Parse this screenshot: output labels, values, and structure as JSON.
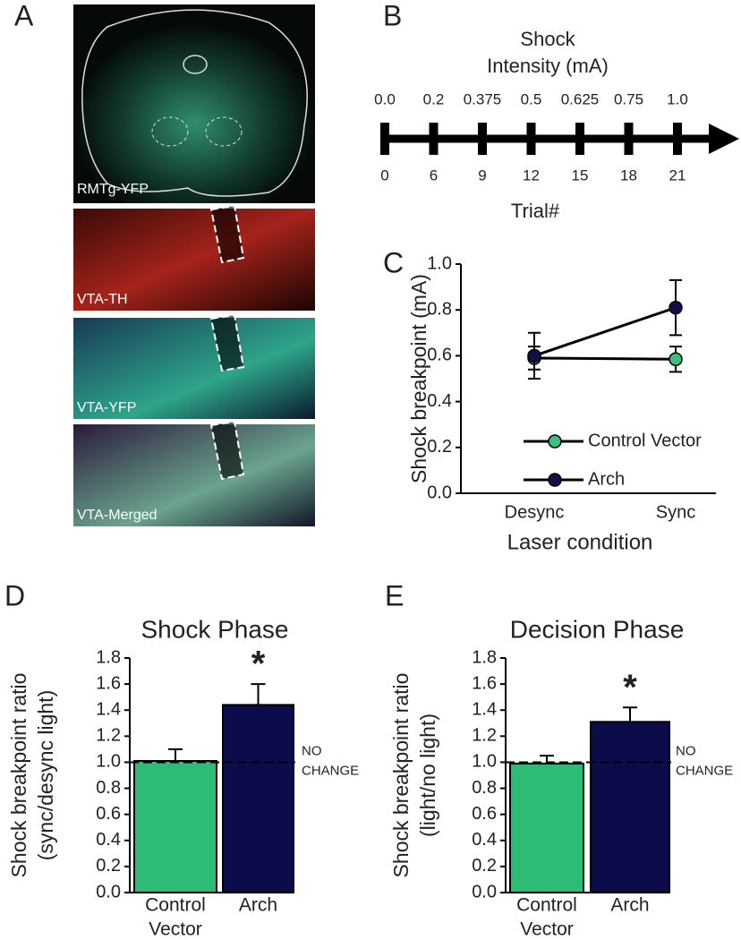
{
  "panel_a": {
    "label": "A",
    "images": [
      "RMTg-YFP",
      "VTA-TH",
      "VTA-YFP",
      "VTA-Merged"
    ]
  },
  "chart_data": [
    {
      "panel": "B",
      "type": "timeline",
      "title": [
        "Shock",
        "Intensity (mA)"
      ],
      "x_label": "Trial#",
      "categories": [
        "0",
        "6",
        "9",
        "12",
        "15",
        "18",
        "21"
      ],
      "values": [
        0,
        0.2,
        0.375,
        0.5,
        0.625,
        0.75,
        1
      ],
      "value_labels": [
        "0.0",
        "0.2",
        "0.375",
        "0.5",
        "0.625",
        "0.75",
        "1.0"
      ],
      "color": "#000000"
    },
    {
      "panel": "C",
      "type": "line",
      "y_label": "Shock breakpoint (mA)",
      "x_label": "Laser condition",
      "categories": [
        "Desync",
        "Sync"
      ],
      "series": [
        {
          "name": "Control Vector",
          "color": "#3dbf7f",
          "values": [
            0.59,
            0.585
          ],
          "errors": [
            0.05,
            0.055
          ]
        },
        {
          "name": "Arch",
          "color": "#10104a",
          "values": [
            0.6,
            0.81
          ],
          "errors": [
            0.1,
            0.12
          ]
        }
      ],
      "ylim": [
        0,
        1
      ],
      "yticks": [
        {
          "value": 0,
          "label": "0.0"
        },
        0.2,
        0.4,
        0.6,
        0.8,
        {
          "value": 1,
          "label": "1.0"
        }
      ],
      "legend": "lower left"
    },
    {
      "panel": "D",
      "type": "bar",
      "title": "Shock Phase",
      "y_label": [
        "Shock breakpoint ratio",
        "(sync/desync light)"
      ],
      "categories": [
        [
          "Control",
          "Vector"
        ],
        [
          "Arch"
        ]
      ],
      "values": [
        1.01,
        1.44
      ],
      "errors": [
        0.09,
        0.16
      ],
      "colors": [
        "#2dbb75",
        "#0c0c4a"
      ],
      "significance": [
        null,
        "*"
      ],
      "reference_line": {
        "value": 1,
        "label": [
          "NO",
          "CHANGE"
        ]
      },
      "ylim": [
        0,
        1.8
      ],
      "yticks": [
        {
          "value": 0,
          "label": "0.0"
        },
        0.2,
        0.4,
        0.6,
        0.8,
        {
          "value": 1,
          "label": "1.0"
        },
        1.2,
        1.4,
        1.6,
        1.8
      ]
    },
    {
      "panel": "E",
      "type": "bar",
      "title": "Decision Phase",
      "y_label": [
        "Shock breakpoint ratio",
        "(light/no light)"
      ],
      "categories": [
        [
          "Control",
          "Vector"
        ],
        [
          "Arch"
        ]
      ],
      "values": [
        0.99,
        1.31
      ],
      "errors": [
        0.06,
        0.11
      ],
      "colors": [
        "#2dbb75",
        "#0c0c4a"
      ],
      "significance": [
        null,
        "*"
      ],
      "reference_line": {
        "value": 1,
        "label": [
          "NO",
          "CHANGE"
        ]
      },
      "ylim": [
        0,
        1.8
      ],
      "yticks": [
        {
          "value": 0,
          "label": "0.0"
        },
        0.2,
        0.4,
        0.6,
        0.8,
        {
          "value": 1,
          "label": "1.0"
        },
        1.2,
        1.4,
        1.6,
        1.8
      ]
    }
  ]
}
